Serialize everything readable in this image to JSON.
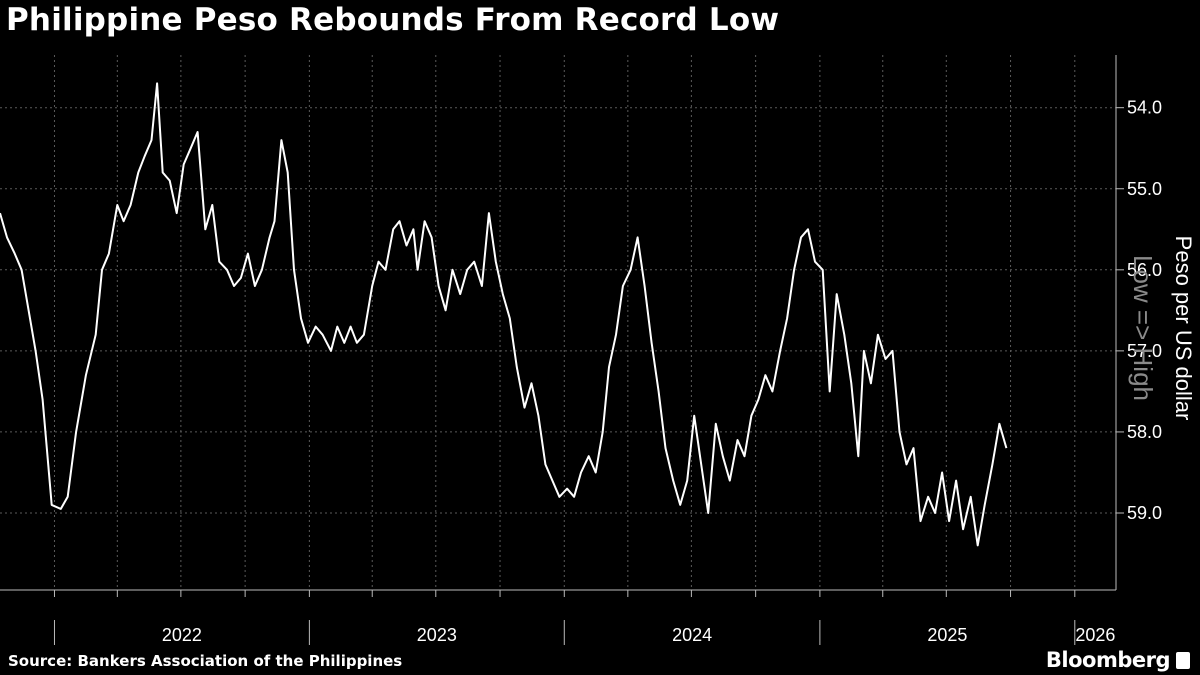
{
  "title": "Philippine Peso Rebounds From Record Low",
  "source": "Source: Bankers Association of the Philippines",
  "brand": "Bloomberg",
  "chart_data": {
    "type": "line",
    "title": "Philippine Peso Rebounds From Record Low",
    "ylabel": "Peso per US dollar",
    "y_inverted": true,
    "annotation": "Low => High",
    "ylim": [
      53.35,
      59.95
    ],
    "yticks": [
      54.0,
      55.0,
      56.0,
      57.0,
      58.0,
      59.0
    ],
    "ytick_labels": [
      "54.0",
      "55.0",
      "56.0",
      "57.0",
      "58.0",
      "59.0"
    ],
    "xlim": [
      "2021-10-15",
      "2026-03-01"
    ],
    "year_labels": [
      "2022",
      "2023",
      "2024",
      "2025",
      "2026"
    ],
    "grid": true,
    "line_color": "#ffffff",
    "background_color": "#000000",
    "series": [
      {
        "values": [
          [
            "2021-10-15",
            55.3
          ],
          [
            "2021-10-25",
            55.6
          ],
          [
            "2021-11-05",
            55.8
          ],
          [
            "2021-11-15",
            56.0
          ],
          [
            "2021-11-25",
            56.5
          ],
          [
            "2021-12-05",
            57.0
          ],
          [
            "2021-12-15",
            57.6
          ],
          [
            "2021-12-22",
            58.3
          ],
          [
            "2021-12-28",
            58.9
          ],
          [
            "2022-01-10",
            58.95
          ],
          [
            "2022-01-20",
            58.8
          ],
          [
            "2022-02-01",
            58.0
          ],
          [
            "2022-02-15",
            57.3
          ],
          [
            "2022-03-01",
            56.8
          ],
          [
            "2022-03-10",
            56.0
          ],
          [
            "2022-03-20",
            55.8
          ],
          [
            "2022-04-01",
            55.2
          ],
          [
            "2022-04-10",
            55.4
          ],
          [
            "2022-04-20",
            55.2
          ],
          [
            "2022-05-01",
            54.8
          ],
          [
            "2022-05-10",
            54.6
          ],
          [
            "2022-05-20",
            54.4
          ],
          [
            "2022-05-28",
            53.7
          ],
          [
            "2022-06-05",
            54.8
          ],
          [
            "2022-06-15",
            54.9
          ],
          [
            "2022-06-25",
            55.3
          ],
          [
            "2022-07-05",
            54.7
          ],
          [
            "2022-07-15",
            54.5
          ],
          [
            "2022-07-25",
            54.3
          ],
          [
            "2022-08-05",
            55.5
          ],
          [
            "2022-08-15",
            55.2
          ],
          [
            "2022-08-25",
            55.9
          ],
          [
            "2022-09-05",
            56.0
          ],
          [
            "2022-09-15",
            56.2
          ],
          [
            "2022-09-25",
            56.1
          ],
          [
            "2022-10-05",
            55.8
          ],
          [
            "2022-10-15",
            56.2
          ],
          [
            "2022-10-25",
            56.0
          ],
          [
            "2022-11-05",
            55.6
          ],
          [
            "2022-11-12",
            55.4
          ],
          [
            "2022-11-22",
            54.4
          ],
          [
            "2022-12-01",
            54.8
          ],
          [
            "2022-12-10",
            56.0
          ],
          [
            "2022-12-20",
            56.6
          ],
          [
            "2022-12-30",
            56.9
          ],
          [
            "2023-01-10",
            56.7
          ],
          [
            "2023-01-20",
            56.8
          ],
          [
            "2023-02-01",
            57.0
          ],
          [
            "2023-02-10",
            56.7
          ],
          [
            "2023-02-20",
            56.9
          ],
          [
            "2023-03-01",
            56.7
          ],
          [
            "2023-03-10",
            56.9
          ],
          [
            "2023-03-20",
            56.8
          ],
          [
            "2023-04-01",
            56.2
          ],
          [
            "2023-04-10",
            55.9
          ],
          [
            "2023-04-20",
            56.0
          ],
          [
            "2023-05-01",
            55.5
          ],
          [
            "2023-05-10",
            55.4
          ],
          [
            "2023-05-20",
            55.7
          ],
          [
            "2023-05-30",
            55.5
          ],
          [
            "2023-06-05",
            56.0
          ],
          [
            "2023-06-15",
            55.4
          ],
          [
            "2023-06-25",
            55.6
          ],
          [
            "2023-07-05",
            56.2
          ],
          [
            "2023-07-15",
            56.5
          ],
          [
            "2023-07-25",
            56.0
          ],
          [
            "2023-08-05",
            56.3
          ],
          [
            "2023-08-15",
            56.0
          ],
          [
            "2023-08-25",
            55.9
          ],
          [
            "2023-09-05",
            56.2
          ],
          [
            "2023-09-15",
            55.3
          ],
          [
            "2023-09-25",
            55.9
          ],
          [
            "2023-10-05",
            56.3
          ],
          [
            "2023-10-15",
            56.6
          ],
          [
            "2023-10-25",
            57.2
          ],
          [
            "2023-11-05",
            57.7
          ],
          [
            "2023-11-15",
            57.4
          ],
          [
            "2023-11-25",
            57.8
          ],
          [
            "2023-12-05",
            58.4
          ],
          [
            "2023-12-15",
            58.6
          ],
          [
            "2023-12-25",
            58.8
          ],
          [
            "2024-01-05",
            58.7
          ],
          [
            "2024-01-15",
            58.8
          ],
          [
            "2024-01-25",
            58.5
          ],
          [
            "2024-02-05",
            58.3
          ],
          [
            "2024-02-15",
            58.5
          ],
          [
            "2024-02-25",
            58.0
          ],
          [
            "2024-03-05",
            57.2
          ],
          [
            "2024-03-15",
            56.8
          ],
          [
            "2024-03-25",
            56.2
          ],
          [
            "2024-04-05",
            56.0
          ],
          [
            "2024-04-15",
            55.6
          ],
          [
            "2024-04-25",
            56.2
          ],
          [
            "2024-05-05",
            56.9
          ],
          [
            "2024-05-15",
            57.5
          ],
          [
            "2024-05-25",
            58.2
          ],
          [
            "2024-06-05",
            58.6
          ],
          [
            "2024-06-15",
            58.9
          ],
          [
            "2024-06-25",
            58.6
          ],
          [
            "2024-07-05",
            57.8
          ],
          [
            "2024-07-15",
            58.4
          ],
          [
            "2024-07-25",
            59.0
          ],
          [
            "2024-08-05",
            57.9
          ],
          [
            "2024-08-15",
            58.3
          ],
          [
            "2024-08-25",
            58.6
          ],
          [
            "2024-09-05",
            58.1
          ],
          [
            "2024-09-15",
            58.3
          ],
          [
            "2024-09-25",
            57.8
          ],
          [
            "2024-10-05",
            57.6
          ],
          [
            "2024-10-15",
            57.3
          ],
          [
            "2024-10-25",
            57.5
          ],
          [
            "2024-11-05",
            57.0
          ],
          [
            "2024-11-15",
            56.6
          ],
          [
            "2024-11-25",
            56.0
          ],
          [
            "2024-12-05",
            55.6
          ],
          [
            "2024-12-15",
            55.5
          ],
          [
            "2024-12-25",
            55.9
          ],
          [
            "2025-01-05",
            56.0
          ],
          [
            "2025-01-15",
            57.5
          ],
          [
            "2025-01-25",
            56.3
          ],
          [
            "2025-02-05",
            56.8
          ],
          [
            "2025-02-15",
            57.4
          ],
          [
            "2025-02-25",
            58.3
          ],
          [
            "2025-03-05",
            57.0
          ],
          [
            "2025-03-15",
            57.4
          ],
          [
            "2025-03-25",
            56.8
          ],
          [
            "2025-04-05",
            57.1
          ],
          [
            "2025-04-15",
            57.0
          ],
          [
            "2025-04-25",
            58.0
          ],
          [
            "2025-05-05",
            58.4
          ],
          [
            "2025-05-15",
            58.2
          ],
          [
            "2025-05-25",
            59.1
          ],
          [
            "2025-06-05",
            58.8
          ],
          [
            "2025-06-15",
            59.0
          ],
          [
            "2025-06-25",
            58.5
          ],
          [
            "2025-07-05",
            59.1
          ],
          [
            "2025-07-15",
            58.6
          ],
          [
            "2025-07-25",
            59.2
          ],
          [
            "2025-08-05",
            58.8
          ],
          [
            "2025-08-15",
            59.4
          ],
          [
            "2025-08-25",
            58.9
          ],
          [
            "2025-09-05",
            58.4
          ],
          [
            "2025-09-15",
            57.9
          ],
          [
            "2025-09-25",
            58.2
          ]
        ]
      }
    ]
  }
}
